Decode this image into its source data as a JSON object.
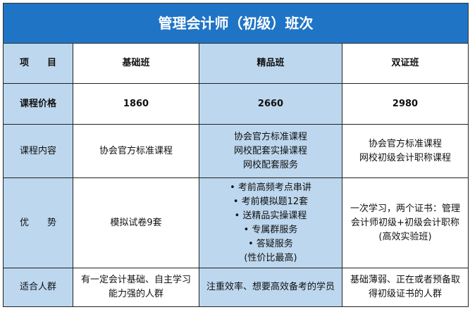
{
  "title": "管理会计师（初级）班次",
  "header": {
    "item": "项　　目",
    "columns": [
      "基础班",
      "精品班",
      "双证班"
    ]
  },
  "rows": [
    {
      "label": "课程价格",
      "cells": [
        [
          "1860"
        ],
        [
          "2660"
        ],
        [
          "2980"
        ]
      ]
    },
    {
      "label": "课程内容",
      "cells": [
        [
          "协会官方标准课程"
        ],
        [
          "协会官方标准课程",
          "网校配套实操课程",
          "网校配套服务"
        ],
        [
          "协会官方标准课程",
          "网校初级会计职称课程"
        ]
      ]
    },
    {
      "label": "优　　势",
      "cells": [
        [
          "模拟试卷9套"
        ],
        [
          "• 考前高频考点串讲",
          "• 考前模拟题12套",
          "• 送精品实操课程",
          "• 专属群服务",
          "• 答疑服务",
          "(性价比最高)"
        ],
        [
          "一次学习，两个证书：管理",
          "会计师初级+初级会计职称",
          "(高效实验班)"
        ]
      ]
    },
    {
      "label": "适合人群",
      "cells": [
        [
          "有一定会计基础、自主学习",
          "能力强的人群"
        ],
        [
          "注重效率、想要高效备考的学员"
        ],
        [
          "基础薄弱、正在或者预备取",
          "得初级证书的人群"
        ]
      ]
    }
  ],
  "colors": {
    "title_bg": "#1f74c5",
    "highlight": "#bdd7ee"
  }
}
